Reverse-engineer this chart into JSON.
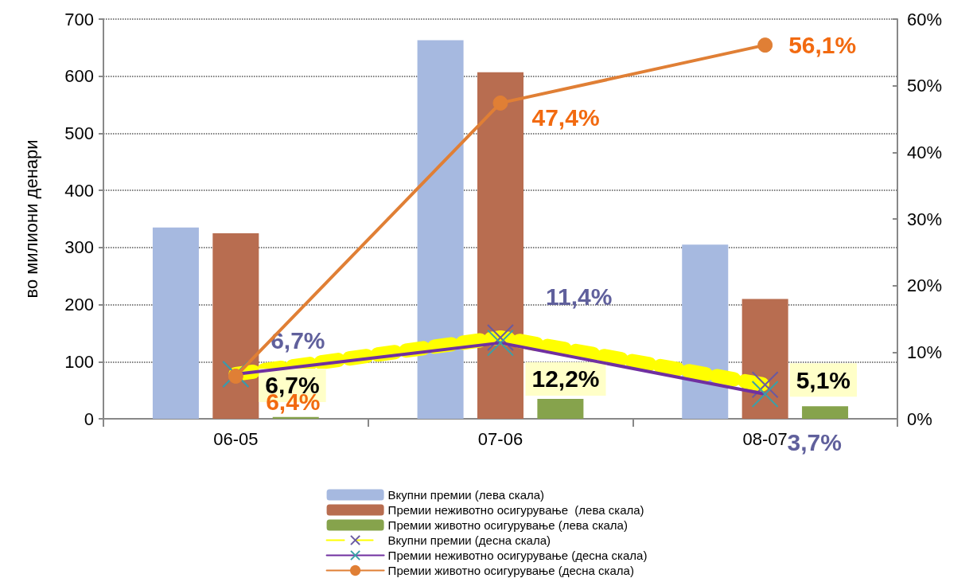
{
  "chart_data": {
    "type": "bar",
    "ylabel": "во милиони денари",
    "categories": [
      "06-05",
      "07-06",
      "08-07"
    ],
    "series": [
      {
        "name": "Вкупни премии (лева скала)",
        "color": "#a6b9e0",
        "values": [
          335,
          663,
          305
        ]
      },
      {
        "name": "Премии неживотно осигурување  (лева скала)",
        "color": "#b86d50",
        "values": [
          325,
          607,
          210
        ]
      },
      {
        "name": "Премии животно осигурување (лева скала)",
        "color": "#86a34c",
        "values": [
          3,
          35,
          22
        ]
      },
      {
        "name": "Вкупни премии (десна скала)",
        "type": "line",
        "axis": "y2",
        "color": "#ffff00",
        "line_style": "dashed",
        "marker": "cross",
        "values": [
          6.7,
          12.2,
          5.1
        ],
        "value_labels": [
          "6,7%",
          "12,2%",
          "5,1%"
        ]
      },
      {
        "name": "Премии неживотно осигурување (десна скала)",
        "type": "line",
        "axis": "y2",
        "color": "#7030a0",
        "line_style": "solid",
        "marker": "cross",
        "values": [
          6.7,
          11.4,
          3.7
        ],
        "value_labels": [
          "6,7%",
          "11,4%",
          "3,7%"
        ]
      },
      {
        "name": "Премии животно осигурување (десна скала)",
        "type": "line",
        "axis": "y2",
        "color": "#e07f35",
        "line_style": "solid",
        "marker": "circle",
        "values": [
          6.4,
          47.4,
          56.1
        ],
        "value_labels": [
          "6,4%",
          "47,4%",
          "56,1%"
        ]
      }
    ],
    "ylim": [
      0,
      700
    ],
    "yticks": [
      0,
      100,
      200,
      300,
      400,
      500,
      600,
      700
    ],
    "y2lim": [
      0,
      60
    ],
    "y2ticks": [
      {
        "value": 0,
        "label": "0%"
      },
      {
        "value": 10,
        "label": "10%"
      },
      {
        "value": 20,
        "label": "20%"
      },
      {
        "value": 30,
        "label": "30%"
      },
      {
        "value": 40,
        "label": "40%"
      },
      {
        "value": 50,
        "label": "50%"
      },
      {
        "value": 60,
        "label": "60%"
      }
    ],
    "grid": "y",
    "legend": "bottom"
  }
}
